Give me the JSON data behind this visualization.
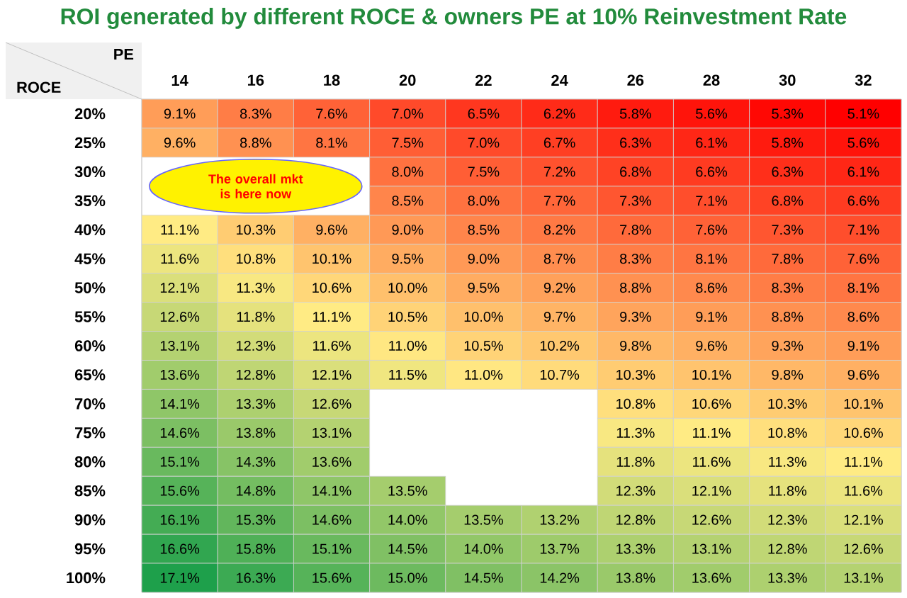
{
  "chart_data": {
    "type": "heatmap",
    "title": "ROI generated by different ROCE & owners PE at 10% Reinvestment Rate",
    "xlabel": "PE",
    "ylabel": "ROCE",
    "categories": [
      "14",
      "16",
      "18",
      "20",
      "22",
      "24",
      "26",
      "28",
      "30",
      "32"
    ],
    "y_categories": [
      "20%",
      "25%",
      "30%",
      "35%",
      "40%",
      "45%",
      "50%",
      "55%",
      "60%",
      "65%",
      "70%",
      "75%",
      "80%",
      "85%",
      "90%",
      "95%",
      "100%"
    ],
    "cells": [
      [
        9.1,
        8.3,
        7.6,
        7.0,
        6.5,
        6.2,
        5.8,
        5.6,
        5.3,
        5.1
      ],
      [
        9.6,
        8.8,
        8.1,
        7.5,
        7.0,
        6.7,
        6.3,
        6.1,
        5.8,
        5.6
      ],
      [
        null,
        null,
        null,
        8.0,
        7.5,
        7.2,
        6.8,
        6.6,
        6.3,
        6.1
      ],
      [
        null,
        null,
        null,
        8.5,
        8.0,
        7.7,
        7.3,
        7.1,
        6.8,
        6.6
      ],
      [
        11.1,
        10.3,
        9.6,
        9.0,
        8.5,
        8.2,
        7.8,
        7.6,
        7.3,
        7.1
      ],
      [
        11.6,
        10.8,
        10.1,
        9.5,
        9.0,
        8.7,
        8.3,
        8.1,
        7.8,
        7.6
      ],
      [
        12.1,
        11.3,
        10.6,
        10.0,
        9.5,
        9.2,
        8.8,
        8.6,
        8.3,
        8.1
      ],
      [
        12.6,
        11.8,
        11.1,
        10.5,
        10.0,
        9.7,
        9.3,
        9.1,
        8.8,
        8.6
      ],
      [
        13.1,
        12.3,
        11.6,
        11.0,
        10.5,
        10.2,
        9.8,
        9.6,
        9.3,
        9.1
      ],
      [
        13.6,
        12.8,
        12.1,
        11.5,
        11.0,
        10.7,
        10.3,
        10.1,
        9.8,
        9.6
      ],
      [
        14.1,
        13.3,
        12.6,
        null,
        null,
        null,
        10.8,
        10.6,
        10.3,
        10.1
      ],
      [
        14.6,
        13.8,
        13.1,
        null,
        null,
        null,
        11.3,
        11.1,
        10.8,
        10.6
      ],
      [
        15.1,
        14.3,
        13.6,
        null,
        null,
        null,
        11.8,
        11.6,
        11.3,
        11.1
      ],
      [
        15.6,
        14.8,
        14.1,
        13.5,
        null,
        null,
        12.3,
        12.1,
        11.8,
        11.6
      ],
      [
        16.1,
        15.3,
        14.6,
        14.0,
        13.5,
        13.2,
        12.8,
        12.6,
        12.3,
        12.1
      ],
      [
        16.6,
        15.8,
        15.1,
        14.5,
        14.0,
        13.7,
        13.3,
        13.1,
        12.8,
        12.6
      ],
      [
        17.1,
        16.3,
        15.6,
        15.0,
        14.5,
        14.2,
        13.8,
        13.6,
        13.3,
        13.1
      ]
    ],
    "cell_labels": [
      [
        "9.1%",
        "8.3%",
        "7.6%",
        "7.0%",
        "6.5%",
        "6.2%",
        "5.8%",
        "5.6%",
        "5.3%",
        "5.1%"
      ],
      [
        "9.6%",
        "8.8%",
        "8.1%",
        "7.5%",
        "7.0%",
        "6.7%",
        "6.3%",
        "6.1%",
        "5.8%",
        "5.6%"
      ],
      [
        null,
        null,
        null,
        "8.0%",
        "7.5%",
        "7.2%",
        "6.8%",
        "6.6%",
        "6.3%",
        "6.1%"
      ],
      [
        null,
        null,
        null,
        "8.5%",
        "8.0%",
        "7.7%",
        "7.3%",
        "7.1%",
        "6.8%",
        "6.6%"
      ],
      [
        "11.1%",
        "10.3%",
        "9.6%",
        "9.0%",
        "8.5%",
        "8.2%",
        "7.8%",
        "7.6%",
        "7.3%",
        "7.1%"
      ],
      [
        "11.6%",
        "10.8%",
        "10.1%",
        "9.5%",
        "9.0%",
        "8.7%",
        "8.3%",
        "8.1%",
        "7.8%",
        "7.6%"
      ],
      [
        "12.1%",
        "11.3%",
        "10.6%",
        "10.0%",
        "9.5%",
        "9.2%",
        "8.8%",
        "8.6%",
        "8.3%",
        "8.1%"
      ],
      [
        "12.6%",
        "11.8%",
        "11.1%",
        "10.5%",
        "10.0%",
        "9.7%",
        "9.3%",
        "9.1%",
        "8.8%",
        "8.6%"
      ],
      [
        "13.1%",
        "12.3%",
        "11.6%",
        "11.0%",
        "10.5%",
        "10.2%",
        "9.8%",
        "9.6%",
        "9.3%",
        "9.1%"
      ],
      [
        "13.6%",
        "12.8%",
        "12.1%",
        "11.5%",
        "11.0%",
        "10.7%",
        "10.3%",
        "10.1%",
        "9.8%",
        "9.6%"
      ],
      [
        "14.1%",
        "13.3%",
        "12.6%",
        null,
        null,
        null,
        "10.8%",
        "10.6%",
        "10.3%",
        "10.1%"
      ],
      [
        "14.6%",
        "13.8%",
        "13.1%",
        null,
        null,
        null,
        "11.3%",
        "11.1%",
        "10.8%",
        "10.6%"
      ],
      [
        "15.1%",
        "14.3%",
        "13.6%",
        null,
        null,
        null,
        "11.8%",
        "11.6%",
        "11.3%",
        "11.1%"
      ],
      [
        "15.6%",
        "14.8%",
        "14.1%",
        "13.5%",
        null,
        null,
        "12.3%",
        "12.1%",
        "11.8%",
        "11.6%"
      ],
      [
        "16.1%",
        "15.3%",
        "14.6%",
        "14.0%",
        "13.5%",
        "13.2%",
        "12.8%",
        "12.6%",
        "12.3%",
        "12.1%"
      ],
      [
        "16.6%",
        "15.8%",
        "15.1%",
        "14.5%",
        "14.0%",
        "13.7%",
        "13.3%",
        "13.1%",
        "12.8%",
        "12.6%"
      ],
      [
        "17.1%",
        "16.3%",
        "15.6%",
        "15.0%",
        "14.5%",
        "14.2%",
        "13.8%",
        "13.6%",
        "13.3%",
        "13.1%"
      ]
    ],
    "annotations": [
      "The overall mkt is here now"
    ]
  }
}
